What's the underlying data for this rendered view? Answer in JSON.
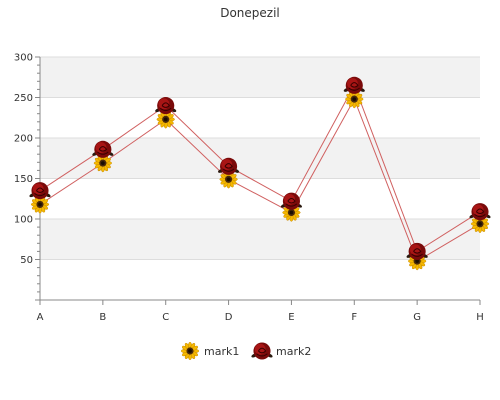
{
  "chart_data": {
    "type": "line",
    "title": "Donepezil",
    "categories": [
      "A",
      "B",
      "C",
      "D",
      "E",
      "F",
      "G",
      "H"
    ],
    "series": [
      {
        "name": "mark1",
        "values": [
          118,
          169,
          223,
          149,
          108,
          248,
          48,
          94
        ],
        "marker": "sunflower-icon"
      },
      {
        "name": "mark2",
        "values": [
          135,
          186,
          240,
          165,
          122,
          265,
          60,
          109
        ],
        "marker": "rose-icon"
      }
    ],
    "ylim": [
      0,
      300
    ],
    "yticks": [
      50,
      100,
      150,
      200,
      250,
      300
    ],
    "grid": true,
    "legend": "bottom",
    "colors": {
      "line": "#d06060",
      "band": "#f2f2f2",
      "axis": "#888888",
      "gridline": "#dddddd"
    }
  }
}
